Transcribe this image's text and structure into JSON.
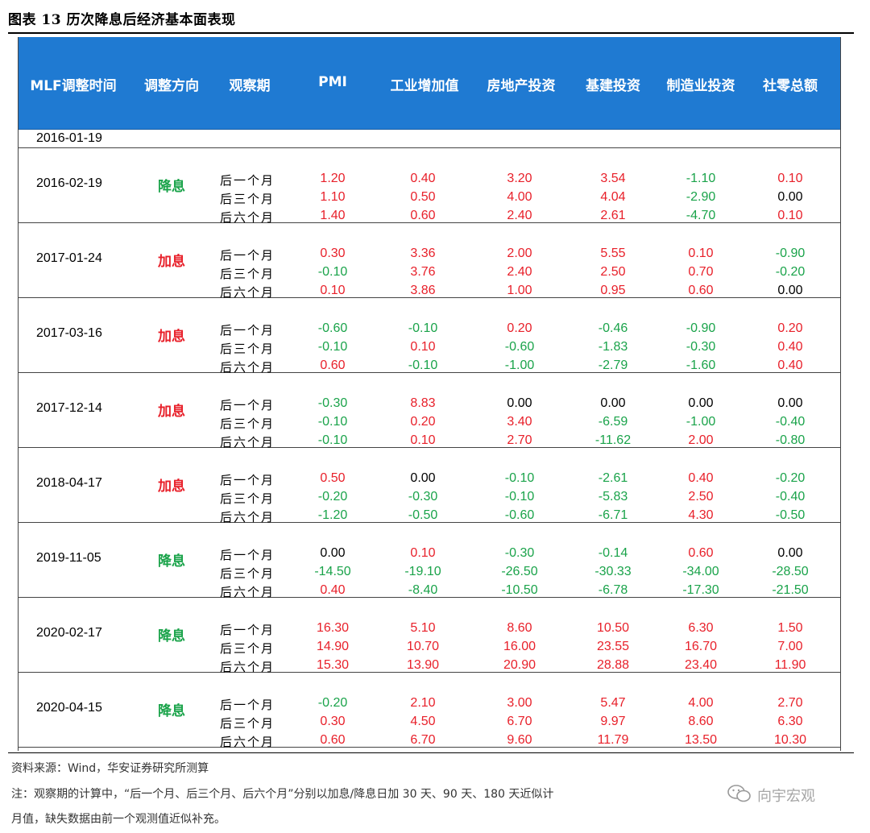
{
  "figure_title": "图表 13  历次降息后经济基本面表现",
  "header": [
    "MLF调整时间",
    "调整方向",
    "观察期",
    "PMI",
    "工业增加值",
    "房地产投资",
    "基建投资",
    "制造业投资",
    "社零总额"
  ],
  "first_row_date": "2016-01-19",
  "periods": [
    "后一个月",
    "后三个月",
    "后六个月"
  ],
  "colors": {
    "header_bg": "#1f7ad2",
    "cut": "#1aa34a",
    "hike": "#e8202a",
    "positive": "#e8202a",
    "negative": "#1aa34a",
    "zero": "#000000"
  },
  "groups": [
    {
      "date": "2016-02-19",
      "direction": "降息",
      "dir_type": "cut",
      "rows": [
        [
          "1.20",
          "0.40",
          "3.20",
          "3.54",
          "-1.10",
          "0.10"
        ],
        [
          "1.10",
          "0.50",
          "4.00",
          "4.04",
          "-2.90",
          "0.00"
        ],
        [
          "1.40",
          "0.60",
          "2.40",
          "2.61",
          "-4.70",
          "0.10"
        ]
      ]
    },
    {
      "date": "2017-01-24",
      "direction": "加息",
      "dir_type": "hike",
      "rows": [
        [
          "0.30",
          "3.36",
          "2.00",
          "5.55",
          "0.10",
          "-0.90"
        ],
        [
          "-0.10",
          "3.76",
          "2.40",
          "2.50",
          "0.70",
          "-0.20"
        ],
        [
          "0.10",
          "3.86",
          "1.00",
          "0.95",
          "0.60",
          "0.00"
        ]
      ]
    },
    {
      "date": "2017-03-16",
      "direction": "加息",
      "dir_type": "hike",
      "rows": [
        [
          "-0.60",
          "-0.10",
          "0.20",
          "-0.46",
          "-0.90",
          "0.20"
        ],
        [
          "-0.10",
          "0.10",
          "-0.60",
          "-1.83",
          "-0.30",
          "0.40"
        ],
        [
          "0.60",
          "-0.10",
          "-1.00",
          "-2.79",
          "-1.60",
          "0.40"
        ]
      ]
    },
    {
      "date": "2017-12-14",
      "direction": "加息",
      "dir_type": "hike",
      "rows": [
        [
          "-0.30",
          "8.83",
          "0.00",
          "0.00",
          "0.00",
          "0.00"
        ],
        [
          "-0.10",
          "0.20",
          "3.40",
          "-6.59",
          "-1.00",
          "-0.40"
        ],
        [
          "-0.10",
          "0.10",
          "2.70",
          "-11.62",
          "2.00",
          "-0.80"
        ]
      ]
    },
    {
      "date": "2018-04-17",
      "direction": "加息",
      "dir_type": "hike",
      "rows": [
        [
          "0.50",
          "0.00",
          "-0.10",
          "-2.61",
          "0.40",
          "-0.20"
        ],
        [
          "-0.20",
          "-0.30",
          "-0.10",
          "-5.83",
          "2.50",
          "-0.40"
        ],
        [
          "-1.20",
          "-0.50",
          "-0.60",
          "-6.71",
          "4.30",
          "-0.50"
        ]
      ]
    },
    {
      "date": "2019-11-05",
      "direction": "降息",
      "dir_type": "cut",
      "rows": [
        [
          "0.00",
          "0.10",
          "-0.30",
          "-0.14",
          "0.60",
          "0.00"
        ],
        [
          "-14.50",
          "-19.10",
          "-26.50",
          "-30.33",
          "-34.00",
          "-28.50"
        ],
        [
          "0.40",
          "-8.40",
          "-10.50",
          "-6.78",
          "-17.30",
          "-21.50"
        ]
      ]
    },
    {
      "date": "2020-02-17",
      "direction": "降息",
      "dir_type": "cut",
      "rows": [
        [
          "16.30",
          "5.10",
          "8.60",
          "10.50",
          "6.30",
          "1.50"
        ],
        [
          "14.90",
          "10.70",
          "16.00",
          "23.55",
          "16.70",
          "7.00"
        ],
        [
          "15.30",
          "13.90",
          "20.90",
          "28.88",
          "23.40",
          "11.90"
        ]
      ]
    },
    {
      "date": "2020-04-15",
      "direction": "降息",
      "dir_type": "cut",
      "rows": [
        [
          "-0.20",
          "2.10",
          "3.00",
          "5.47",
          "4.00",
          "2.70"
        ],
        [
          "0.30",
          "4.50",
          "6.70",
          "9.97",
          "8.60",
          "6.30"
        ],
        [
          "0.60",
          "6.70",
          "9.60",
          "11.79",
          "13.50",
          "10.30"
        ]
      ]
    }
  ],
  "source": "资料来源：Wind，华安证券研究所测算",
  "note_line1": "注：观察期的计算中，“后一个月、后三个月、后六个月”分别以加息/降息日加 30 天、90 天、180 天近似计",
  "note_line2": "月值，缺失数据由前一个观测值近似补充。",
  "watermark_text": "向宇宏观",
  "watermark_icon": "wechat-icon"
}
